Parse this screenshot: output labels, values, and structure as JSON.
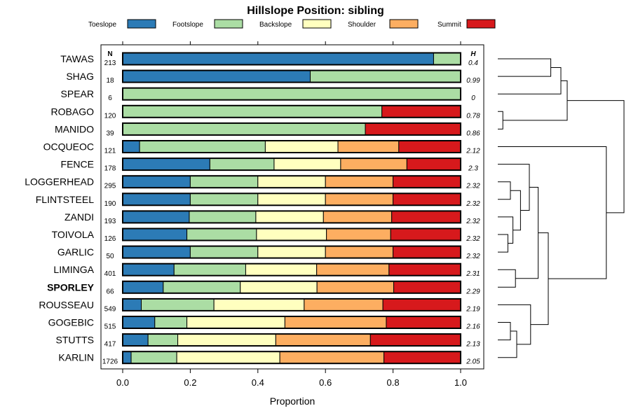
{
  "chart_data": {
    "type": "bar",
    "orientation": "horizontal",
    "stacked": true,
    "title": "Hillslope Position: sibling",
    "xlabel": "Proportion",
    "ylabel": "",
    "xlim": [
      0,
      1
    ],
    "x_ticks": [
      "0.0",
      "0.2",
      "0.4",
      "0.6",
      "0.8",
      "1.0"
    ],
    "legend_position": "top",
    "n_header": "N",
    "h_header": "H",
    "series": [
      {
        "name": "Toeslope",
        "color": "#2C7BB6"
      },
      {
        "name": "Footslope",
        "color": "#ABDDA4"
      },
      {
        "name": "Backslope",
        "color": "#FFFFBF"
      },
      {
        "name": "Shoulder",
        "color": "#FDAE61"
      },
      {
        "name": "Summit",
        "color": "#D7191C"
      }
    ],
    "rows": [
      {
        "name": "TAWAS",
        "n": "213",
        "h": "0.4",
        "bold": false,
        "values": [
          0.92,
          0.08,
          0,
          0,
          0
        ]
      },
      {
        "name": "SHAG",
        "n": "18",
        "h": "0.99",
        "bold": false,
        "values": [
          0.555,
          0.445,
          0,
          0,
          0
        ]
      },
      {
        "name": "SPEAR",
        "n": "6",
        "h": "0",
        "bold": false,
        "values": [
          0,
          1.0,
          0,
          0,
          0
        ]
      },
      {
        "name": "ROBAGO",
        "n": "120",
        "h": "0.78",
        "bold": false,
        "values": [
          0,
          0.767,
          0,
          0,
          0.233
        ]
      },
      {
        "name": "MANIDO",
        "n": "39",
        "h": "0.86",
        "bold": false,
        "values": [
          0,
          0.718,
          0,
          0,
          0.282
        ]
      },
      {
        "name": "OCQUEOC",
        "n": "121",
        "h": "2.12",
        "bold": false,
        "values": [
          0.05,
          0.372,
          0.215,
          0.18,
          0.183
        ]
      },
      {
        "name": "FENCE",
        "n": "178",
        "h": "2.3",
        "bold": false,
        "values": [
          0.258,
          0.19,
          0.197,
          0.196,
          0.159
        ]
      },
      {
        "name": "LOGGERHEAD",
        "n": "295",
        "h": "2.32",
        "bold": false,
        "values": [
          0.2,
          0.2,
          0.2,
          0.2,
          0.2
        ]
      },
      {
        "name": "FLINTSTEEL",
        "n": "190",
        "h": "2.32",
        "bold": false,
        "values": [
          0.2,
          0.2,
          0.2,
          0.2,
          0.2
        ]
      },
      {
        "name": "ZANDI",
        "n": "193",
        "h": "2.32",
        "bold": false,
        "values": [
          0.197,
          0.197,
          0.2,
          0.202,
          0.204
        ]
      },
      {
        "name": "TOIVOLA",
        "n": "126",
        "h": "2.32",
        "bold": false,
        "values": [
          0.19,
          0.206,
          0.207,
          0.19,
          0.207
        ]
      },
      {
        "name": "GARLIC",
        "n": "50",
        "h": "2.32",
        "bold": false,
        "values": [
          0.2,
          0.2,
          0.2,
          0.2,
          0.2
        ]
      },
      {
        "name": "LIMINGA",
        "n": "401",
        "h": "2.31",
        "bold": false,
        "values": [
          0.152,
          0.212,
          0.21,
          0.214,
          0.212
        ]
      },
      {
        "name": "SPORLEY",
        "n": "66",
        "h": "2.29",
        "bold": true,
        "values": [
          0.12,
          0.228,
          0.227,
          0.227,
          0.198
        ]
      },
      {
        "name": "ROUSSEAU",
        "n": "549",
        "h": "2.19",
        "bold": false,
        "values": [
          0.055,
          0.215,
          0.267,
          0.233,
          0.23
        ]
      },
      {
        "name": "GOGEBIC",
        "n": "515",
        "h": "2.16",
        "bold": false,
        "values": [
          0.095,
          0.095,
          0.29,
          0.3,
          0.22
        ]
      },
      {
        "name": "STUTTS",
        "n": "417",
        "h": "2.13",
        "bold": false,
        "values": [
          0.075,
          0.088,
          0.29,
          0.28,
          0.267
        ]
      },
      {
        "name": "KARLIN",
        "n": "1726",
        "h": "2.05",
        "bold": false,
        "values": [
          0.025,
          0.135,
          0.305,
          0.308,
          0.227
        ]
      }
    ],
    "dendrogram": {
      "merges": [
        {
          "a": 7,
          "b": 8,
          "height": 0.1
        },
        {
          "a": 10,
          "b": 11,
          "height": 0.08
        },
        {
          "a": 9,
          "b": "m1",
          "height": 0.12
        },
        {
          "a": "m0",
          "b": "m2",
          "height": 0.18
        },
        {
          "a": 12,
          "b": 13,
          "height": 0.14
        },
        {
          "a": 6,
          "b": "m3",
          "height": 0.25
        },
        {
          "a": "m5",
          "b": "m4",
          "height": 0.32
        },
        {
          "a": 15,
          "b": 16,
          "height": 0.1
        },
        {
          "a": 17,
          "b": "m7",
          "height": 0.15
        },
        {
          "a": 14,
          "b": "m8",
          "height": 0.26
        },
        {
          "a": "m6",
          "b": "m9",
          "height": 0.4
        },
        {
          "a": 5,
          "b": "m10",
          "height": 0.86
        },
        {
          "a": 3,
          "b": 4,
          "height": 0.04
        },
        {
          "a": 0,
          "b": 1,
          "height": 0.42
        },
        {
          "a": 2,
          "b": "m13",
          "height": 0.5
        },
        {
          "a": "m12",
          "b": "m14",
          "height": 0.55
        },
        {
          "a": "m15",
          "b": "m11",
          "height": 1.0
        }
      ]
    }
  }
}
